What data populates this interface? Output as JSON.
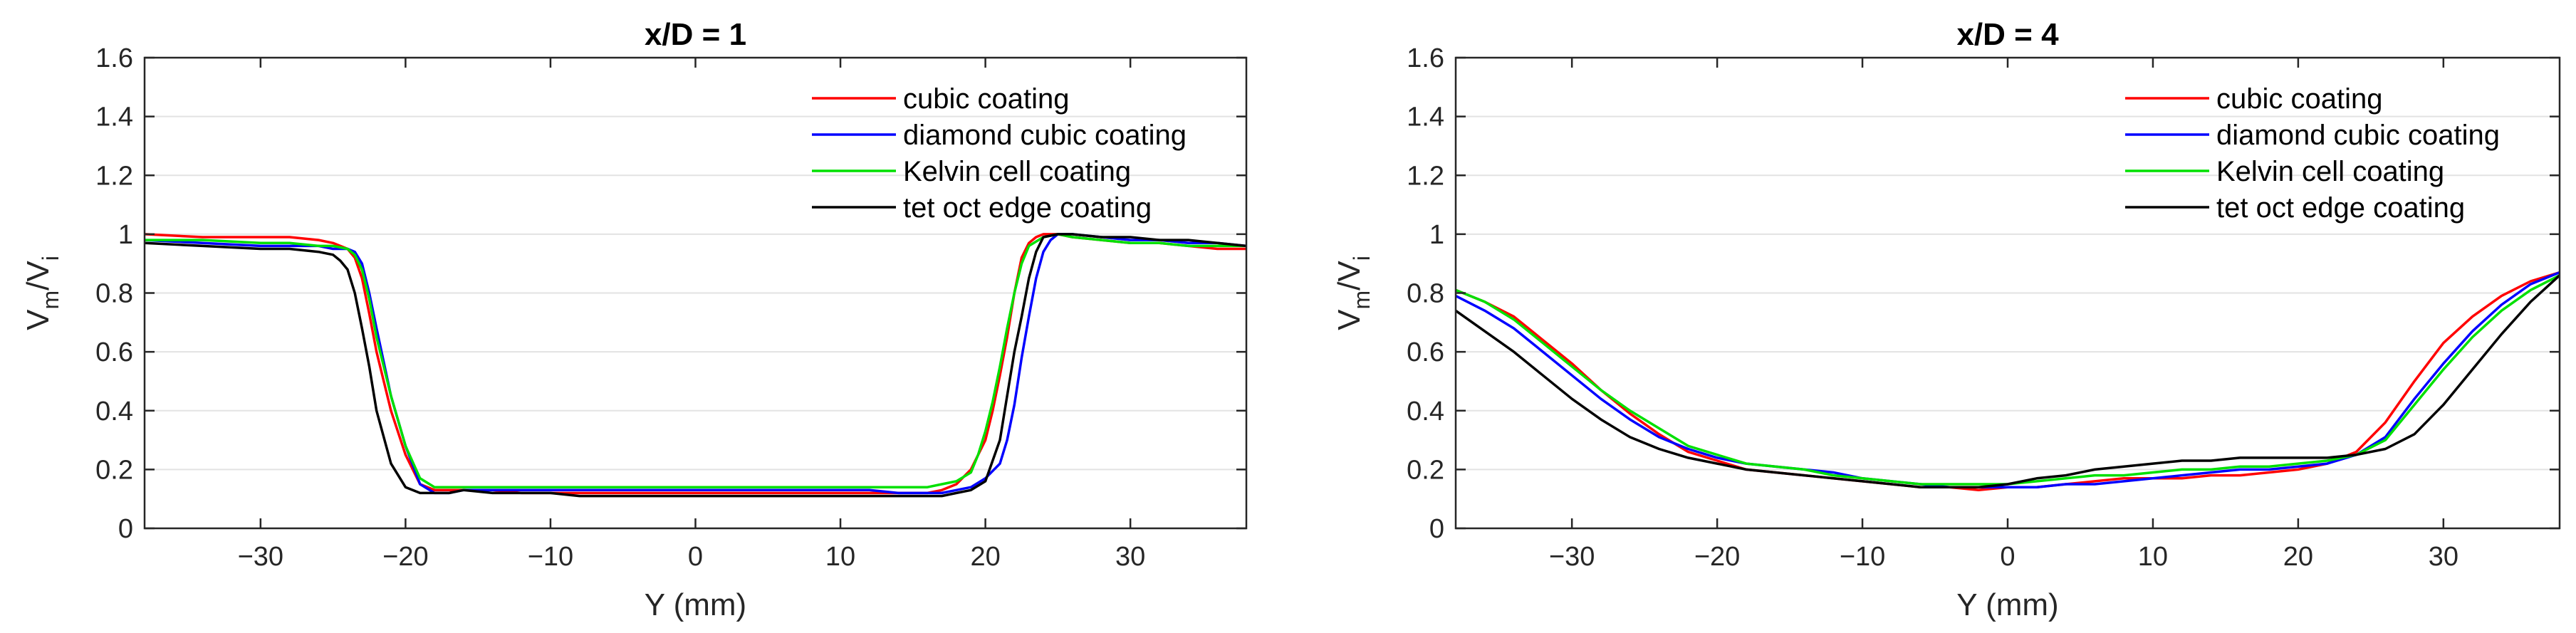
{
  "chart_data": [
    {
      "type": "line",
      "title": "x/D = 1",
      "xlabel": "Y (mm)",
      "ylabel": {
        "main": "V",
        "sub1": "m",
        "slash": "/V",
        "sub2": "i"
      },
      "xlim": [
        -38,
        38
      ],
      "ylim": [
        0,
        1.6
      ],
      "xticks": [
        -30,
        -20,
        -10,
        0,
        10,
        20,
        30
      ],
      "xtick_labels": [
        "−30",
        "−20",
        "−10",
        "0",
        "10",
        "20",
        "30"
      ],
      "yticks": [
        0,
        0.2,
        0.4,
        0.6,
        0.8,
        1,
        1.2,
        1.4,
        1.6
      ],
      "ytick_labels": [
        "0",
        "0.2",
        "0.4",
        "0.6",
        "0.8",
        "1",
        "1.2",
        "1.4",
        "1.6"
      ],
      "grid": "horizontal",
      "legend_position": "top-right",
      "series": [
        {
          "name": "cubic coating",
          "color": "#ff0000",
          "x": [
            -38,
            -34,
            -30,
            -28,
            -26,
            -25,
            -24,
            -23.5,
            -23,
            -22.5,
            -22,
            -21,
            -20,
            -19,
            -18,
            -17,
            -16,
            -14,
            -12,
            -10,
            -8,
            -6,
            -4,
            -2,
            0,
            2,
            4,
            6,
            8,
            10,
            12,
            14,
            16,
            17,
            18,
            19,
            20,
            20.5,
            21,
            21.5,
            22,
            22.5,
            23,
            23.5,
            24,
            25,
            26,
            28,
            30,
            32,
            34,
            36,
            38
          ],
          "y": [
            1.0,
            0.99,
            0.99,
            0.99,
            0.98,
            0.97,
            0.95,
            0.92,
            0.85,
            0.73,
            0.6,
            0.4,
            0.25,
            0.15,
            0.13,
            0.13,
            0.13,
            0.13,
            0.12,
            0.12,
            0.12,
            0.12,
            0.12,
            0.12,
            0.12,
            0.12,
            0.12,
            0.12,
            0.12,
            0.12,
            0.12,
            0.12,
            0.12,
            0.13,
            0.15,
            0.2,
            0.3,
            0.4,
            0.52,
            0.65,
            0.8,
            0.92,
            0.97,
            0.99,
            1.0,
            1.0,
            0.99,
            0.98,
            0.97,
            0.97,
            0.96,
            0.95,
            0.95
          ]
        },
        {
          "name": "diamond cubic coating",
          "color": "#0000ff",
          "x": [
            -38,
            -34,
            -30,
            -28,
            -26,
            -25,
            -24,
            -23.5,
            -23,
            -22.5,
            -22,
            -21,
            -20,
            -19,
            -18,
            -17,
            -16,
            -14,
            -12,
            -10,
            -8,
            -6,
            -4,
            -2,
            0,
            2,
            4,
            6,
            8,
            10,
            12,
            14,
            16,
            17,
            18,
            19,
            20,
            21,
            21.5,
            22,
            22.5,
            23,
            23.5,
            24,
            24.5,
            25,
            26,
            28,
            30,
            32,
            34,
            36,
            38
          ],
          "y": [
            0.98,
            0.97,
            0.96,
            0.96,
            0.96,
            0.95,
            0.95,
            0.94,
            0.9,
            0.8,
            0.68,
            0.45,
            0.28,
            0.15,
            0.12,
            0.12,
            0.13,
            0.13,
            0.13,
            0.13,
            0.13,
            0.13,
            0.13,
            0.13,
            0.13,
            0.13,
            0.13,
            0.13,
            0.13,
            0.13,
            0.13,
            0.12,
            0.12,
            0.12,
            0.13,
            0.14,
            0.17,
            0.22,
            0.3,
            0.42,
            0.58,
            0.72,
            0.85,
            0.94,
            0.98,
            1.0,
            1.0,
            0.99,
            0.98,
            0.98,
            0.97,
            0.97,
            0.96
          ]
        },
        {
          "name": "Kelvin cell coating",
          "color": "#00e000",
          "x": [
            -38,
            -34,
            -30,
            -28,
            -26,
            -25,
            -24,
            -23.5,
            -23,
            -22.5,
            -22,
            -21,
            -20,
            -19,
            -18,
            -17,
            -16,
            -14,
            -12,
            -10,
            -8,
            -6,
            -4,
            -2,
            0,
            2,
            4,
            6,
            8,
            10,
            12,
            14,
            16,
            17,
            18,
            19,
            19.5,
            20,
            20.5,
            21,
            21.5,
            22,
            22.5,
            23,
            24,
            25,
            26,
            28,
            30,
            32,
            34,
            36,
            38
          ],
          "y": [
            0.98,
            0.98,
            0.97,
            0.97,
            0.96,
            0.96,
            0.95,
            0.93,
            0.88,
            0.78,
            0.65,
            0.45,
            0.28,
            0.17,
            0.14,
            0.14,
            0.14,
            0.14,
            0.14,
            0.14,
            0.14,
            0.14,
            0.14,
            0.14,
            0.14,
            0.14,
            0.14,
            0.14,
            0.14,
            0.14,
            0.14,
            0.14,
            0.14,
            0.15,
            0.16,
            0.19,
            0.25,
            0.33,
            0.43,
            0.55,
            0.68,
            0.8,
            0.9,
            0.96,
            0.99,
            1.0,
            0.99,
            0.98,
            0.97,
            0.97,
            0.96,
            0.96,
            0.96
          ]
        },
        {
          "name": "tet oct edge coating",
          "color": "#000000",
          "x": [
            -38,
            -34,
            -30,
            -28,
            -26,
            -25,
            -24.5,
            -24,
            -23.5,
            -23,
            -22.5,
            -22,
            -21,
            -20,
            -19,
            -18,
            -17,
            -16,
            -14,
            -12,
            -10,
            -8,
            -6,
            -4,
            -2,
            0,
            2,
            4,
            6,
            8,
            10,
            12,
            14,
            16,
            17,
            18,
            19,
            20,
            21,
            21.5,
            22,
            22.5,
            23,
            23.5,
            24,
            25,
            26,
            28,
            30,
            32,
            34,
            36,
            38
          ],
          "y": [
            0.97,
            0.96,
            0.95,
            0.95,
            0.94,
            0.93,
            0.91,
            0.88,
            0.8,
            0.68,
            0.55,
            0.4,
            0.22,
            0.14,
            0.12,
            0.12,
            0.12,
            0.13,
            0.12,
            0.12,
            0.12,
            0.11,
            0.11,
            0.11,
            0.11,
            0.11,
            0.11,
            0.11,
            0.11,
            0.11,
            0.11,
            0.11,
            0.11,
            0.11,
            0.11,
            0.12,
            0.13,
            0.16,
            0.3,
            0.45,
            0.6,
            0.72,
            0.85,
            0.94,
            0.99,
            1.0,
            1.0,
            0.99,
            0.99,
            0.98,
            0.98,
            0.97,
            0.96
          ]
        }
      ],
      "legend": {
        "entries": [
          "cubic coating",
          "diamond cubic coating",
          "Kelvin cell coating",
          "tet oct edge coating"
        ]
      }
    },
    {
      "type": "line",
      "title": "x/D = 4",
      "xlabel": "Y (mm)",
      "ylabel": {
        "main": "V",
        "sub1": "m",
        "slash": "/V",
        "sub2": "i"
      },
      "xlim": [
        -38,
        38
      ],
      "ylim": [
        0,
        1.6
      ],
      "xticks": [
        -30,
        -20,
        -10,
        0,
        10,
        20,
        30
      ],
      "xtick_labels": [
        "−30",
        "−20",
        "−10",
        "0",
        "10",
        "20",
        "30"
      ],
      "yticks": [
        0,
        0.2,
        0.4,
        0.6,
        0.8,
        1,
        1.2,
        1.4,
        1.6
      ],
      "ytick_labels": [
        "0",
        "0.2",
        "0.4",
        "0.6",
        "0.8",
        "1",
        "1.2",
        "1.4",
        "1.6"
      ],
      "grid": "horizontal",
      "legend_position": "top-right",
      "series": [
        {
          "name": "cubic coating",
          "color": "#ff0000",
          "x": [
            -38,
            -36,
            -34,
            -32,
            -30,
            -28,
            -26,
            -24,
            -22,
            -20,
            -18,
            -16,
            -14,
            -12,
            -10,
            -8,
            -6,
            -4,
            -2,
            0,
            2,
            4,
            6,
            8,
            10,
            12,
            14,
            16,
            18,
            20,
            22,
            24,
            26,
            28,
            30,
            32,
            34,
            36,
            38
          ],
          "y": [
            0.81,
            0.77,
            0.72,
            0.64,
            0.56,
            0.47,
            0.39,
            0.32,
            0.26,
            0.23,
            0.2,
            0.19,
            0.18,
            0.17,
            0.16,
            0.15,
            0.14,
            0.14,
            0.13,
            0.14,
            0.14,
            0.15,
            0.16,
            0.17,
            0.17,
            0.17,
            0.18,
            0.18,
            0.19,
            0.2,
            0.22,
            0.26,
            0.36,
            0.5,
            0.63,
            0.72,
            0.79,
            0.84,
            0.87
          ]
        },
        {
          "name": "diamond cubic coating",
          "color": "#0000ff",
          "x": [
            -38,
            -36,
            -34,
            -32,
            -30,
            -28,
            -26,
            -24,
            -22,
            -20,
            -18,
            -16,
            -14,
            -12,
            -10,
            -8,
            -6,
            -4,
            -2,
            0,
            2,
            4,
            6,
            8,
            10,
            12,
            14,
            16,
            18,
            20,
            22,
            24,
            26,
            28,
            30,
            32,
            34,
            36,
            38
          ],
          "y": [
            0.79,
            0.74,
            0.68,
            0.6,
            0.52,
            0.44,
            0.37,
            0.31,
            0.27,
            0.24,
            0.22,
            0.21,
            0.2,
            0.19,
            0.17,
            0.16,
            0.15,
            0.14,
            0.14,
            0.14,
            0.14,
            0.15,
            0.15,
            0.16,
            0.17,
            0.18,
            0.19,
            0.2,
            0.2,
            0.21,
            0.22,
            0.25,
            0.31,
            0.44,
            0.56,
            0.67,
            0.76,
            0.83,
            0.87
          ]
        },
        {
          "name": "Kelvin cell coating",
          "color": "#00e000",
          "x": [
            -38,
            -36,
            -34,
            -32,
            -30,
            -28,
            -26,
            -24,
            -22,
            -20,
            -18,
            -16,
            -14,
            -12,
            -10,
            -8,
            -6,
            -4,
            -2,
            0,
            2,
            4,
            6,
            8,
            10,
            12,
            14,
            16,
            18,
            20,
            22,
            24,
            26,
            28,
            30,
            32,
            34,
            36,
            38
          ],
          "y": [
            0.81,
            0.77,
            0.71,
            0.63,
            0.55,
            0.47,
            0.4,
            0.34,
            0.28,
            0.25,
            0.22,
            0.21,
            0.2,
            0.18,
            0.17,
            0.16,
            0.15,
            0.15,
            0.15,
            0.15,
            0.16,
            0.17,
            0.18,
            0.18,
            0.19,
            0.2,
            0.2,
            0.21,
            0.21,
            0.22,
            0.23,
            0.25,
            0.3,
            0.42,
            0.54,
            0.65,
            0.74,
            0.81,
            0.86
          ]
        },
        {
          "name": "tet oct edge coating",
          "color": "#000000",
          "x": [
            -38,
            -36,
            -34,
            -32,
            -30,
            -28,
            -26,
            -24,
            -22,
            -20,
            -18,
            -16,
            -14,
            -12,
            -10,
            -8,
            -6,
            -4,
            -2,
            0,
            2,
            4,
            6,
            8,
            10,
            12,
            14,
            16,
            18,
            20,
            22,
            24,
            26,
            28,
            30,
            32,
            34,
            36,
            38
          ],
          "y": [
            0.74,
            0.67,
            0.6,
            0.52,
            0.44,
            0.37,
            0.31,
            0.27,
            0.24,
            0.22,
            0.2,
            0.19,
            0.18,
            0.17,
            0.16,
            0.15,
            0.14,
            0.14,
            0.14,
            0.15,
            0.17,
            0.18,
            0.2,
            0.21,
            0.22,
            0.23,
            0.23,
            0.24,
            0.24,
            0.24,
            0.24,
            0.25,
            0.27,
            0.32,
            0.42,
            0.54,
            0.66,
            0.77,
            0.86
          ]
        }
      ],
      "legend": {
        "entries": [
          "cubic coating",
          "diamond cubic coating",
          "Kelvin cell coating",
          "tet oct edge coating"
        ]
      }
    }
  ]
}
